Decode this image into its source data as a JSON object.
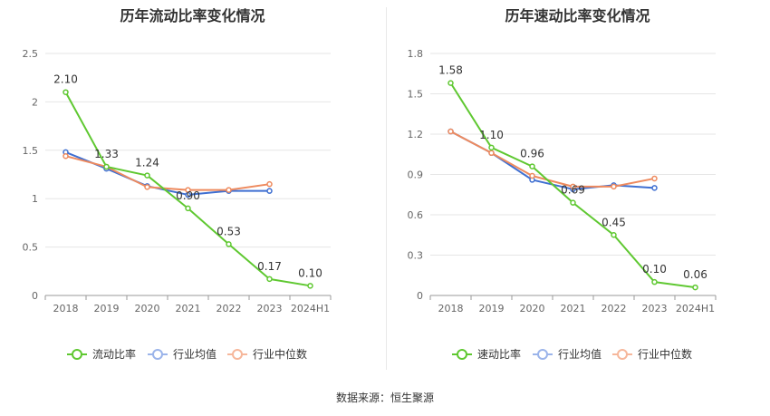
{
  "source_text": "数据来源：恒生聚源",
  "chart_data": [
    {
      "type": "line",
      "title": "历年流动比率变化情况",
      "categories": [
        "2018",
        "2019",
        "2020",
        "2021",
        "2022",
        "2023",
        "2024H1"
      ],
      "ylim": [
        0,
        2.5
      ],
      "yticks": [
        0,
        0.5,
        1,
        1.5,
        2,
        2.5
      ],
      "ytick_labels": [
        "0",
        "0.5",
        "1",
        "1.5",
        "2",
        "2.5"
      ],
      "grid": true,
      "legend_position": "bottom",
      "series": [
        {
          "name": "流动比率",
          "color": "#5fc831",
          "values": [
            2.1,
            1.33,
            1.24,
            0.9,
            0.53,
            0.17,
            0.1
          ],
          "labels": [
            "2.10",
            "1.33",
            "1.24",
            "0.90",
            "0.53",
            "0.17",
            "0.10"
          ]
        },
        {
          "name": "行业均值",
          "color": "#3f6fd1",
          "values": [
            1.48,
            1.31,
            1.13,
            1.04,
            1.08,
            1.08,
            null
          ]
        },
        {
          "name": "行业中位数",
          "color": "#ee8a5e",
          "values": [
            1.44,
            1.33,
            1.12,
            1.09,
            1.09,
            1.15,
            null
          ]
        }
      ]
    },
    {
      "type": "line",
      "title": "历年速动比率变化情况",
      "categories": [
        "2018",
        "2019",
        "2020",
        "2021",
        "2022",
        "2023",
        "2024H1"
      ],
      "ylim": [
        0,
        1.8
      ],
      "yticks": [
        0,
        0.3,
        0.6,
        0.9,
        1.2,
        1.5,
        1.8
      ],
      "ytick_labels": [
        "0",
        "0.3",
        "0.6",
        "0.9",
        "1.2",
        "1.5",
        "1.8"
      ],
      "grid": true,
      "legend_position": "bottom",
      "series": [
        {
          "name": "速动比率",
          "color": "#5fc831",
          "values": [
            1.58,
            1.1,
            0.96,
            0.69,
            0.45,
            0.1,
            0.06
          ],
          "labels": [
            "1.58",
            "1.10",
            "0.96",
            "0.69",
            "0.45",
            "0.10",
            "0.06"
          ]
        },
        {
          "name": "行业均值",
          "color": "#3f6fd1",
          "values": [
            1.22,
            1.06,
            0.86,
            0.79,
            0.82,
            0.8,
            null
          ]
        },
        {
          "name": "行业中位数",
          "color": "#ee8a5e",
          "values": [
            1.22,
            1.06,
            0.89,
            0.81,
            0.81,
            0.87,
            null
          ]
        }
      ]
    }
  ]
}
